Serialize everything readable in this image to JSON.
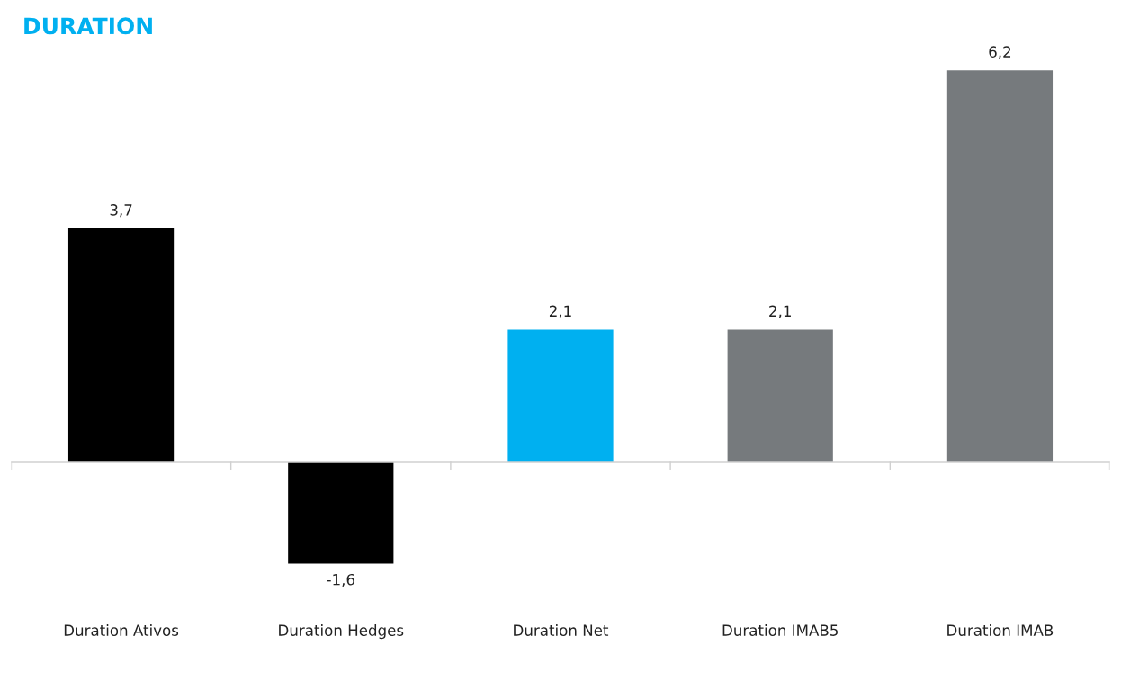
{
  "chart_data": {
    "type": "bar",
    "title": "DURATION",
    "categories": [
      "Duration Ativos",
      "Duration Hedges",
      "Duration Net",
      "Duration IMAB5",
      "Duration IMAB"
    ],
    "values": [
      3.7,
      -1.6,
      2.1,
      2.1,
      6.2
    ],
    "value_labels": [
      "3,7",
      "-1,6",
      "2,1",
      "2,1",
      "6,2"
    ],
    "colors": [
      "#000000",
      "#000000",
      "#00b0f0",
      "#767a7d",
      "#767a7d"
    ]
  }
}
